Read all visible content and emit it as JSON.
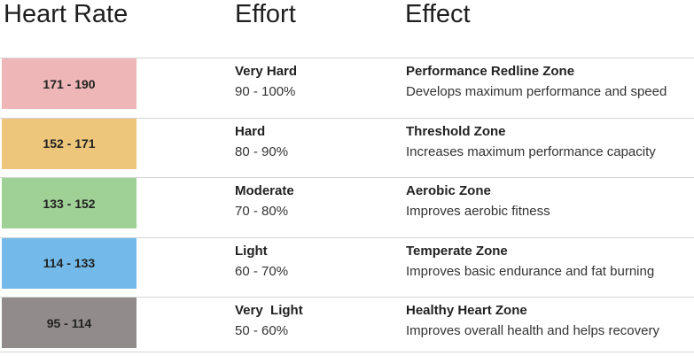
{
  "table": {
    "headers": [
      "Heart Rate",
      "Effort",
      "Effect"
    ],
    "rows": [
      {
        "heart_rate": "171 - 190",
        "color": "#eeb6b6",
        "effort": "Very Hard",
        "effort_percent": "90 - 100%",
        "effect": "Performance Redline Zone",
        "effect_description": "Develops maximum performance and speed"
      },
      {
        "heart_rate": "152 - 171",
        "color": "#edc57b",
        "effort": "Hard",
        "effort_percent": "80 - 90%",
        "effect": "Threshold Zone",
        "effect_description": "Increases maximum performance capacity"
      },
      {
        "heart_rate": "133 - 152",
        "color": "#9fd096",
        "effort": "Moderate",
        "effort_percent": "70 - 80%",
        "effect": "Aerobic Zone",
        "effect_description": "Improves aerobic fitness"
      },
      {
        "heart_rate": "114 - 133",
        "color": "#73b9e9",
        "effort": "Light",
        "effort_percent": "60 - 70%",
        "effect": "Temperate Zone",
        "effect_description": "Improves basic endurance and fat burning"
      },
      {
        "heart_rate": "95 - 114",
        "color": "#918b8b",
        "effort": "Very  Light",
        "effort_percent": "50 - 60%",
        "effect": "Healthy Heart Zone",
        "effect_description": "Improves overall health and helps recovery"
      }
    ]
  }
}
